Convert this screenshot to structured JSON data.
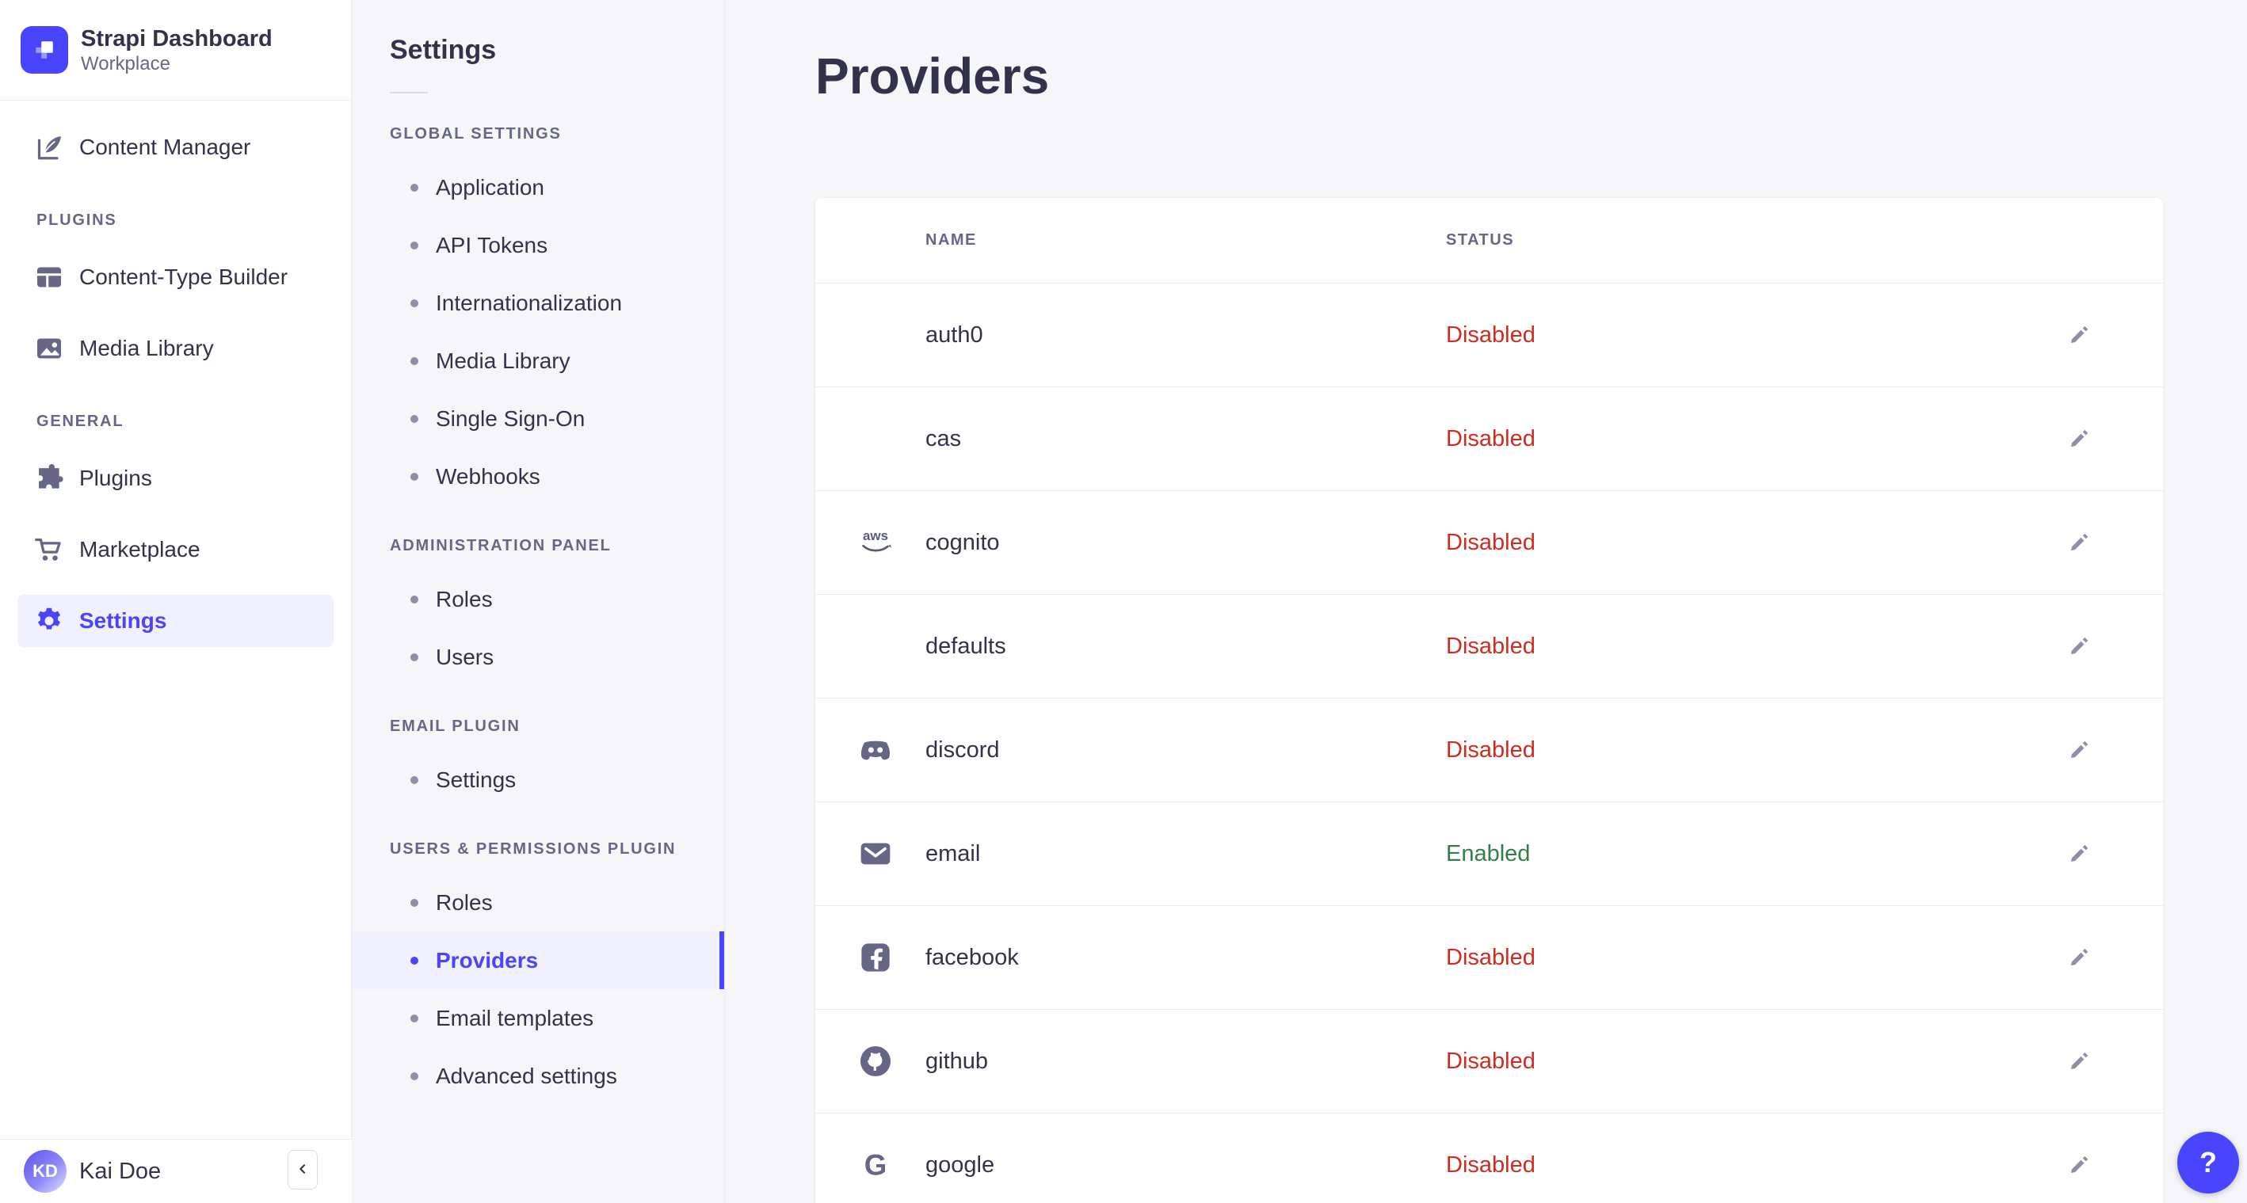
{
  "colors": {
    "primary": "#4945ff",
    "primary_light": "#f0f0ff",
    "danger": "#d02b20",
    "success": "#328048",
    "text": "#32324d",
    "muted": "#666687",
    "icon_muted": "#8e8ea9",
    "border": "#eaeaef",
    "background": "#f6f6f9"
  },
  "brand": {
    "name": "Strapi Dashboard",
    "workplace": "Workplace",
    "logo_icon": "strapi-logo-icon"
  },
  "sidebar": {
    "top_items": [
      {
        "label": "Content Manager",
        "icon": "feather-icon",
        "active": false
      }
    ],
    "sections": [
      {
        "label": "PLUGINS",
        "items": [
          {
            "label": "Content-Type Builder",
            "icon": "layout-grid-icon",
            "active": false
          },
          {
            "label": "Media Library",
            "icon": "picture-icon",
            "active": false
          }
        ]
      },
      {
        "label": "GENERAL",
        "items": [
          {
            "label": "Plugins",
            "icon": "puzzle-icon",
            "active": false
          },
          {
            "label": "Marketplace",
            "icon": "cart-icon",
            "active": false
          },
          {
            "label": "Settings",
            "icon": "gear-icon",
            "active": true
          }
        ]
      }
    ],
    "user": {
      "name": "Kai Doe",
      "initials": "KD"
    },
    "collapse_icon": "chevron-left-icon"
  },
  "settings_nav": {
    "title": "Settings",
    "sections": [
      {
        "label": "GLOBAL SETTINGS",
        "items": [
          "Application",
          "API Tokens",
          "Internationalization",
          "Media Library",
          "Single Sign-On",
          "Webhooks"
        ]
      },
      {
        "label": "ADMINISTRATION PANEL",
        "items": [
          "Roles",
          "Users"
        ]
      },
      {
        "label": "EMAIL PLUGIN",
        "items": [
          "Settings"
        ]
      },
      {
        "label": "USERS & PERMISSIONS PLUGIN",
        "items": [
          "Roles",
          "Providers",
          "Email templates",
          "Advanced settings"
        ],
        "active_item": "Providers"
      }
    ]
  },
  "main": {
    "title": "Providers",
    "table": {
      "columns": [
        "NAME",
        "STATUS"
      ],
      "rows": [
        {
          "name": "auth0",
          "icon": null,
          "status": "Disabled"
        },
        {
          "name": "cas",
          "icon": null,
          "status": "Disabled"
        },
        {
          "name": "cognito",
          "icon": "aws-icon",
          "status": "Disabled"
        },
        {
          "name": "defaults",
          "icon": null,
          "status": "Disabled"
        },
        {
          "name": "discord",
          "icon": "discord-icon",
          "status": "Disabled"
        },
        {
          "name": "email",
          "icon": "envelope-icon",
          "status": "Enabled"
        },
        {
          "name": "facebook",
          "icon": "facebook-icon",
          "status": "Disabled"
        },
        {
          "name": "github",
          "icon": "github-icon",
          "status": "Disabled"
        },
        {
          "name": "google",
          "icon": "google-icon",
          "status": "Disabled"
        }
      ],
      "edit_action": "Edit"
    }
  },
  "help": {
    "label": "?"
  }
}
